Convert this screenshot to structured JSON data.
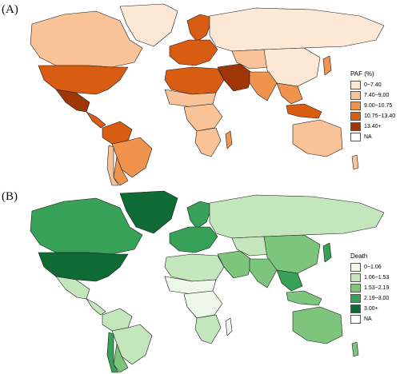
{
  "panels": [
    {
      "label": "(A)",
      "legend_title": "PAF (%)",
      "legend": [
        {
          "label": "0~7.40",
          "color": "#fde8d6"
        },
        {
          "label": "7.40~9.00",
          "color": "#f9c397"
        },
        {
          "label": "9.00~10.75",
          "color": "#f0934f"
        },
        {
          "label": "10.75~13.40",
          "color": "#d85c12"
        },
        {
          "label": "13.40+",
          "color": "#9f3606"
        },
        {
          "label": "NA",
          "color": "#ffffff"
        }
      ]
    },
    {
      "label": "(B)",
      "legend_title": "Death",
      "legend": [
        {
          "label": "0~1.06",
          "color": "#eef8ea"
        },
        {
          "label": "1.06~1.53",
          "color": "#c4e6bc"
        },
        {
          "label": "1.53~2.19",
          "color": "#7dc47c"
        },
        {
          "label": "2.19~3.00",
          "color": "#36a157"
        },
        {
          "label": "3.00+",
          "color": "#0e6b33"
        },
        {
          "label": "NA",
          "color": "#ffffff"
        }
      ]
    }
  ],
  "region_classes": {
    "A": {
      "greenland": 0,
      "canada": 1,
      "usa": 3,
      "mexico": 4,
      "central_america": 3,
      "south_america_n": 3,
      "brazil": 2,
      "south_america_s": 2,
      "chile": 1,
      "europe": 3,
      "scandinavia": 3,
      "russia": 0,
      "north_africa": 3,
      "middle_east": 4,
      "central_asia": 1,
      "china": 0,
      "india": 2,
      "sahel": 1,
      "central_africa": 1,
      "southern_africa": 1,
      "se_asia": 2,
      "indonesia": 3,
      "australia": 1,
      "japan": 2,
      "madagascar": 2,
      "new_zealand": 1
    },
    "B": {
      "greenland": 4,
      "canada": 3,
      "usa": 4,
      "mexico": 1,
      "central_america": 1,
      "south_america_n": 1,
      "brazil": 1,
      "south_america_s": 2,
      "chile": 3,
      "europe": 3,
      "scandinavia": 3,
      "russia": 1,
      "north_africa": 1,
      "middle_east": 2,
      "central_asia": 1,
      "china": 2,
      "india": 2,
      "sahel": 0,
      "central_africa": 0,
      "southern_africa": 1,
      "se_asia": 3,
      "indonesia": 2,
      "australia": 2,
      "japan": 3,
      "madagascar": 0,
      "new_zealand": 2
    }
  }
}
